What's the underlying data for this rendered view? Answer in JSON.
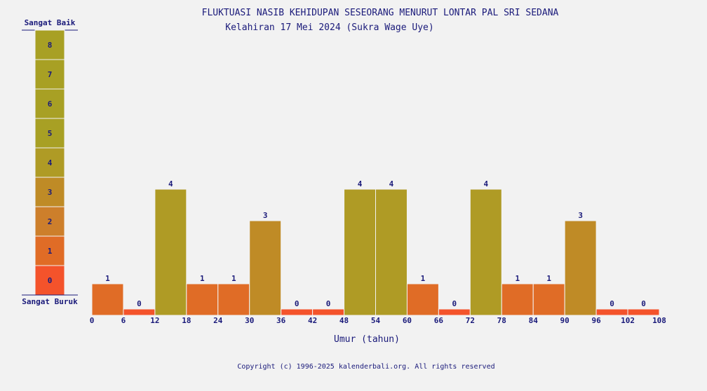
{
  "chart_data": {
    "type": "bar",
    "title": "FLUKTUASI NASIB KEHIDUPAN SESEORANG MENURUT LONTAR PAL SRI SEDANA",
    "subtitle": "Kelahiran 17 Mei 2024 (Sukra Wage Uye)",
    "xlabel": "Umur (tahun)",
    "ylabel": "",
    "x_ticks": [
      0,
      6,
      12,
      18,
      24,
      30,
      36,
      42,
      48,
      54,
      60,
      66,
      72,
      78,
      84,
      90,
      96,
      102,
      108
    ],
    "bins": [
      [
        0,
        6
      ],
      [
        6,
        12
      ],
      [
        12,
        18
      ],
      [
        18,
        24
      ],
      [
        24,
        30
      ],
      [
        30,
        36
      ],
      [
        36,
        42
      ],
      [
        42,
        48
      ],
      [
        48,
        54
      ],
      [
        54,
        60
      ],
      [
        60,
        66
      ],
      [
        66,
        72
      ],
      [
        72,
        78
      ],
      [
        78,
        84
      ],
      [
        84,
        90
      ],
      [
        90,
        96
      ],
      [
        96,
        102
      ],
      [
        102,
        108
      ]
    ],
    "values": [
      1,
      0,
      4,
      1,
      1,
      3,
      0,
      0,
      4,
      4,
      1,
      0,
      4,
      1,
      1,
      3,
      0,
      0
    ],
    "xlim": [
      0,
      108
    ],
    "ylim": [
      0,
      8
    ],
    "grid": false,
    "scale": {
      "top_label": "Sangat Baik",
      "bottom_label": "Sangat Buruk",
      "levels": [
        0,
        1,
        2,
        3,
        4,
        5,
        6,
        7,
        8
      ]
    },
    "level_colors": [
      "#f4532b",
      "#e06c26",
      "#cd7f2b",
      "#bf8b26",
      "#af9b25",
      "#a8a024",
      "#a8a024",
      "#a8a024",
      "#a8a024"
    ]
  },
  "footer": {
    "copyright": "Copyright (c) 1996-2025 kalenderbali.org. All rights reserved"
  }
}
